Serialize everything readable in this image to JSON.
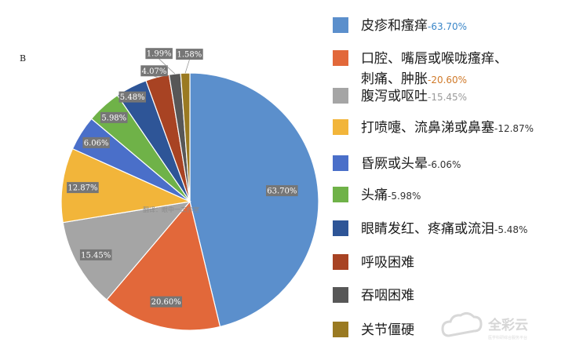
{
  "panel_letter": "B",
  "watermark": "翻译：眼中一工作室",
  "brand": {
    "name": "全彩云",
    "tagline": "医学科研综合服务平台"
  },
  "chart_data": {
    "type": "pie",
    "title": "",
    "start_angle_deg": 0,
    "direction": "clockwise",
    "slices": [
      {
        "name": "皮疹和瘙痒",
        "value": 63.7,
        "label": "63.70%",
        "color": "#5b8fcc",
        "pct_color": "#3a86c8"
      },
      {
        "name": "口腔、嘴唇或喉咙瘙痒、刺痛、肿胀",
        "name_lines": [
          "口腔、嘴唇或喉咙瘙痒、",
          "刺痛、肿胀"
        ],
        "value": 20.6,
        "label": "20.60%",
        "color": "#e2683a",
        "pct_color": "#d07a2a"
      },
      {
        "name": "腹泻或呕吐",
        "value": 15.45,
        "label": "15.45%",
        "color": "#a5a5a5",
        "pct_color": "#9a9a9a"
      },
      {
        "name": "打喷嚏、流鼻涕或鼻塞",
        "value": 12.87,
        "label": "12.87%",
        "color": "#f2b53a",
        "pct_color": "#333333"
      },
      {
        "name": "昏厥或头晕",
        "value": 6.06,
        "label": "6.06%",
        "color": "#4a6fc9",
        "pct_color": "#333333"
      },
      {
        "name": "头痛",
        "value": 5.98,
        "label": "5.98%",
        "color": "#6fb248",
        "pct_color": "#333333"
      },
      {
        "name": "眼睛发红、疼痛或流泪",
        "value": 5.48,
        "label": "5.48%",
        "color": "#2e5597",
        "pct_color": "#333333"
      },
      {
        "name": "呼吸困难",
        "value": 4.07,
        "label": "4.07%",
        "color": "#a84323",
        "pct_color": "#333333"
      },
      {
        "name": "吞咽困难",
        "value": 1.99,
        "label": "1.99%",
        "color": "#575757",
        "pct_color": "#333333"
      },
      {
        "name": "关节僵硬",
        "value": 1.58,
        "label": "1.58%",
        "color": "#9a7a22",
        "pct_color": "#333333"
      }
    ],
    "legend_position": "right",
    "legend_shows_percent_for": [
      0,
      1,
      2,
      3,
      4,
      5,
      6
    ]
  }
}
